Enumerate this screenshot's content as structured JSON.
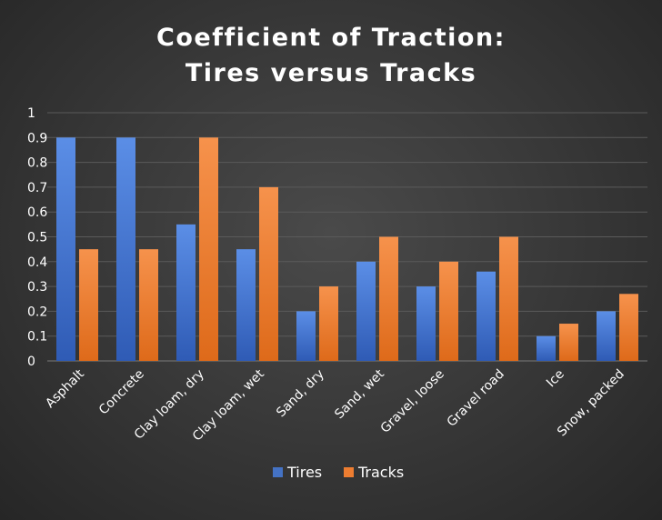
{
  "chart_data": {
    "type": "bar",
    "title_lines": [
      "Coefficient of Traction:",
      "Tires versus Tracks"
    ],
    "categories": [
      "Asphalt",
      "Concrete",
      "Clay loam, dry",
      "Clay loam, wet",
      "Sand, dry",
      "Sand, wet",
      "Gravel, loose",
      "Gravel road",
      "Ice",
      "Snow, packed"
    ],
    "series": [
      {
        "name": "Tires",
        "color": "#4472c4",
        "values": [
          0.9,
          0.9,
          0.55,
          0.45,
          0.2,
          0.4,
          0.3,
          0.36,
          0.1,
          0.2
        ]
      },
      {
        "name": "Tracks",
        "color": "#ed7d31",
        "values": [
          0.45,
          0.45,
          0.9,
          0.7,
          0.3,
          0.5,
          0.4,
          0.5,
          0.15,
          0.27
        ]
      }
    ],
    "y_ticks": [
      "0",
      "0.1",
      "0.2",
      "0.3",
      "0.4",
      "0.5",
      "0.6",
      "0.7",
      "0.8",
      "0.9",
      "1"
    ],
    "ylim": [
      0,
      1
    ],
    "grid": true,
    "legend": "bottom"
  }
}
